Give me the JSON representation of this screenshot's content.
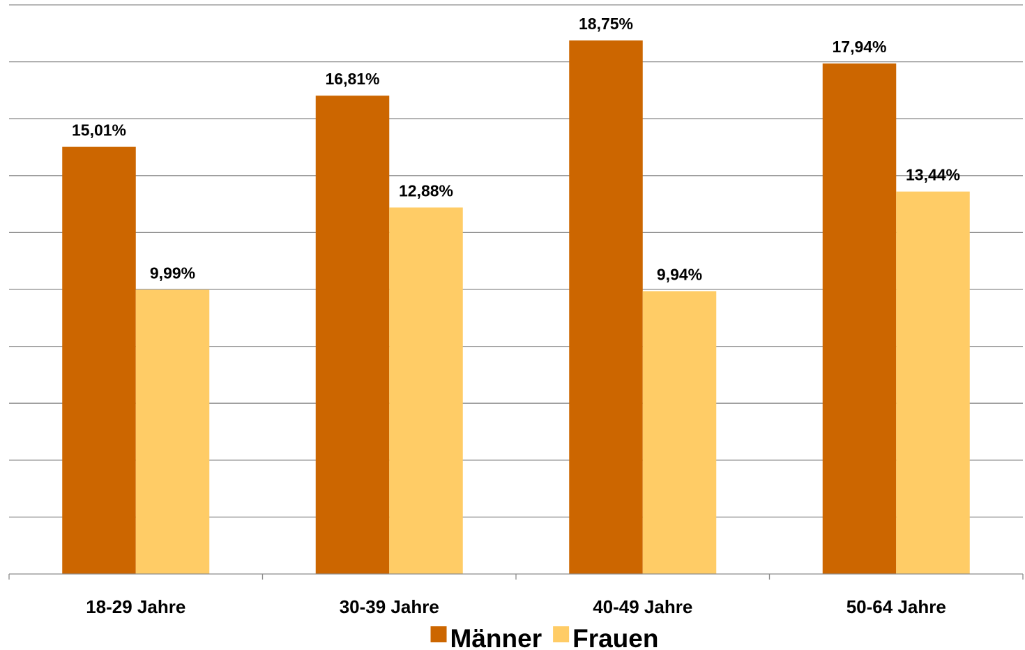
{
  "chart_data": {
    "type": "bar",
    "categories": [
      "18-29 Jahre",
      "30-39 Jahre",
      "40-49 Jahre",
      "50-64 Jahre"
    ],
    "series": [
      {
        "name": "Männer",
        "color": "#CC6600",
        "values": [
          15.01,
          16.81,
          18.75,
          17.94
        ],
        "labels": [
          "15,01%",
          "16,81%",
          "18,75%",
          "17,94%"
        ]
      },
      {
        "name": "Frauen",
        "color": "#FFCC66",
        "values": [
          9.99,
          12.88,
          9.94,
          13.44
        ],
        "labels": [
          "9,99%",
          "12,88%",
          "9,94%",
          "13,44%"
        ]
      }
    ],
    "ylim": [
      0,
      20
    ],
    "y_gridline_step": 2,
    "grid": true,
    "y_axis_labels_visible": false,
    "legend": "bottom",
    "title": "",
    "xlabel": "",
    "ylabel": ""
  }
}
